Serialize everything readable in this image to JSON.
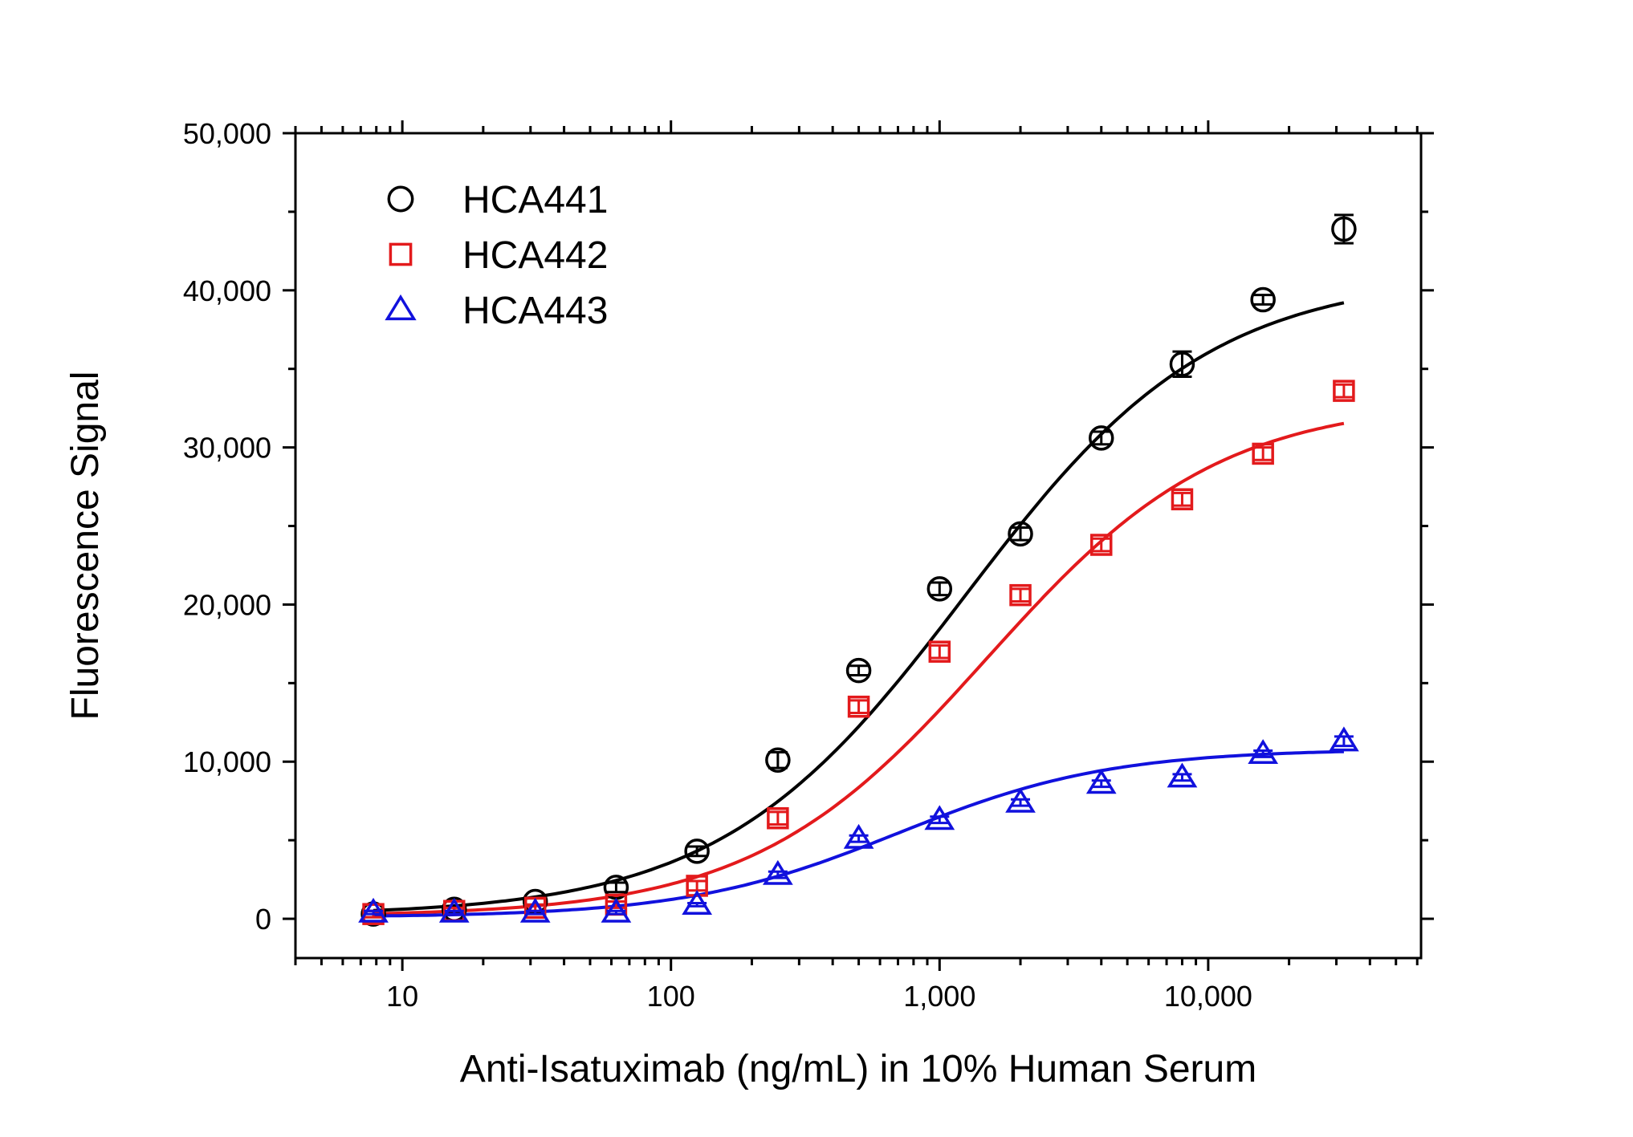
{
  "chart_data": {
    "type": "scatter",
    "xlabel": "Anti-Isatuximab (ng/mL) in 10% Human Serum",
    "ylabel": "Fluorescence Signal",
    "xscale": "log",
    "xlim": [
      4,
      62000
    ],
    "ylim": [
      -2500,
      50000
    ],
    "grid": false,
    "legend_placement": "top-left",
    "x_ticks": [
      {
        "value": 10,
        "label": "10"
      },
      {
        "value": 100,
        "label": "100"
      },
      {
        "value": 1000,
        "label": "1,000"
      },
      {
        "value": 10000,
        "label": "10,000"
      }
    ],
    "y_ticks": [
      {
        "value": 0,
        "label": "0"
      },
      {
        "value": 10000,
        "label": "10,000"
      },
      {
        "value": 20000,
        "label": "20,000"
      },
      {
        "value": 30000,
        "label": "30,000"
      },
      {
        "value": 40000,
        "label": "40,000"
      },
      {
        "value": 50000,
        "label": "50,000"
      }
    ],
    "x": [
      7.8,
      15.6,
      31.25,
      62.5,
      125,
      250,
      500,
      1000,
      2000,
      4000,
      8000,
      16000,
      32000
    ],
    "series": [
      {
        "name": "HCA441",
        "marker": "circle",
        "color": "#000000",
        "values": [
          300,
          600,
          1100,
          2000,
          4300,
          10100,
          15800,
          21000,
          24500,
          30600,
          35300,
          39400,
          43900
        ],
        "errors": [
          200,
          200,
          200,
          300,
          300,
          500,
          300,
          400,
          400,
          400,
          800,
          300,
          900
        ],
        "fit": {
          "bottom": 200,
          "top": 41000,
          "ec50": 1250,
          "hill": 0.95
        }
      },
      {
        "name": "HCA442",
        "marker": "square",
        "color": "#e31a1c",
        "values": [
          300,
          500,
          700,
          900,
          2100,
          6400,
          13500,
          17000,
          20600,
          23800,
          26700,
          29600,
          33600
        ],
        "errors": [
          200,
          200,
          200,
          200,
          300,
          400,
          400,
          400,
          400,
          400,
          400,
          400,
          400
        ],
        "fit": {
          "bottom": 150,
          "top": 33000,
          "ec50": 1500,
          "hill": 1.0
        }
      },
      {
        "name": "HCA443",
        "marker": "triangle",
        "color": "#1111dd",
        "values": [
          400,
          400,
          400,
          400,
          900,
          2800,
          5100,
          6300,
          7400,
          8600,
          9000,
          10500,
          11300
        ],
        "errors": [
          100,
          100,
          100,
          100,
          100,
          200,
          200,
          200,
          200,
          200,
          200,
          200,
          300
        ],
        "fit": {
          "bottom": 100,
          "top": 10800,
          "ec50": 700,
          "hill": 1.1
        }
      }
    ]
  }
}
